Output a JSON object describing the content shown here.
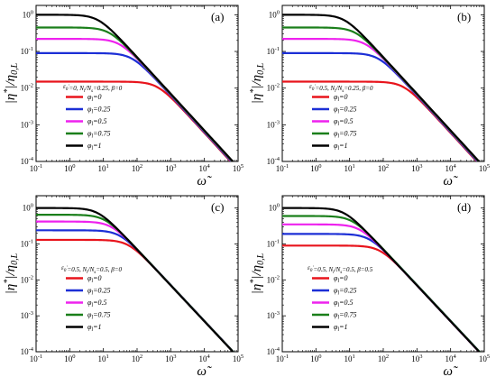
{
  "figure": {
    "xlabel": "ω̃",
    "ylabel": "|η*|/η0,L",
    "x_tick_labels": [
      "10-1",
      "100",
      "101",
      "102",
      "103",
      "104",
      "105"
    ],
    "y_tick_labels": [
      "10-4",
      "10-3",
      "10-2",
      "10-1",
      "100"
    ]
  },
  "chart_data": [
    {
      "type": "line",
      "panel_label": "(a)",
      "title": "",
      "xlabel": "ω̃",
      "ylabel": "|η*|/η0,L",
      "x_scale": "log",
      "y_scale": "log",
      "xlim": [
        0.1,
        100000
      ],
      "ylim": [
        0.0001,
        1.8
      ],
      "conditions": "ε0'=0, Nl/Ns=0.25, β=0",
      "legend_position": "center-left",
      "series": [
        {
          "name": "φl=0",
          "color": "#e8141c",
          "eta0": 0.015,
          "omega_c": 400,
          "slope": 1
        },
        {
          "name": "φl=0.25",
          "color": "#1c2fd6",
          "eta0": 0.09,
          "omega_c": 70,
          "slope": 1
        },
        {
          "name": "φl=0.5",
          "color": "#ee22ee",
          "eta0": 0.22,
          "omega_c": 30,
          "slope": 1
        },
        {
          "name": "φl=0.75",
          "color": "#1a7f1a",
          "eta0": 0.45,
          "omega_c": 15,
          "slope": 1
        },
        {
          "name": "φl=1",
          "color": "#000000",
          "eta0": 1.0,
          "omega_c": 7,
          "slope": 1
        }
      ]
    },
    {
      "type": "line",
      "panel_label": "(b)",
      "title": "",
      "xlabel": "ω̃",
      "ylabel": "|η*|/η0,L",
      "x_scale": "log",
      "y_scale": "log",
      "xlim": [
        0.1,
        100000
      ],
      "ylim": [
        0.0001,
        1.8
      ],
      "conditions": "ε0'=0.5, Nl/Ns=0.25, β=0",
      "legend_position": "center-left",
      "series": [
        {
          "name": "φl=0",
          "color": "#e8141c",
          "eta0": 0.015,
          "omega_c": 400,
          "slope": 1
        },
        {
          "name": "φl=0.25",
          "color": "#1c2fd6",
          "eta0": 0.09,
          "omega_c": 70,
          "slope": 1
        },
        {
          "name": "φl=0.5",
          "color": "#ee22ee",
          "eta0": 0.22,
          "omega_c": 30,
          "slope": 1
        },
        {
          "name": "φl=0.75",
          "color": "#1a7f1a",
          "eta0": 0.45,
          "omega_c": 15,
          "slope": 1
        },
        {
          "name": "φl=1",
          "color": "#000000",
          "eta0": 1.0,
          "omega_c": 7,
          "slope": 1
        }
      ]
    },
    {
      "type": "line",
      "panel_label": "(c)",
      "title": "",
      "xlabel": "ω̃",
      "ylabel": "|η*|/η0,L",
      "x_scale": "log",
      "y_scale": "log",
      "xlim": [
        0.1,
        100000
      ],
      "ylim": [
        0.0001,
        2.2
      ],
      "conditions": "ε0'=0.5, Nl/Ns=0.5, β=0",
      "legend_position": "center-left",
      "series": [
        {
          "name": "φl=0",
          "color": "#e8141c",
          "eta0": 0.13,
          "omega_c": 55,
          "slope": 1
        },
        {
          "name": "φl=0.25",
          "color": "#1c2fd6",
          "eta0": 0.24,
          "omega_c": 30,
          "slope": 1
        },
        {
          "name": "φl=0.5",
          "color": "#ee22ee",
          "eta0": 0.42,
          "omega_c": 17,
          "slope": 1
        },
        {
          "name": "φl=0.75",
          "color": "#1a7f1a",
          "eta0": 0.65,
          "omega_c": 11,
          "slope": 1
        },
        {
          "name": "φl=1",
          "color": "#000000",
          "eta0": 1.0,
          "omega_c": 7,
          "slope": 1
        }
      ]
    },
    {
      "type": "line",
      "panel_label": "(d)",
      "title": "",
      "xlabel": "ω̃",
      "ylabel": "|η*|/η0,L",
      "x_scale": "log",
      "y_scale": "log",
      "xlim": [
        0.1,
        100000
      ],
      "ylim": [
        0.0001,
        2.2
      ],
      "conditions": "ε0'=0.5, Nl/Ns=0.5, β=0.5",
      "legend_position": "center-left",
      "series": [
        {
          "name": "φl=0",
          "color": "#e8141c",
          "eta0": 0.09,
          "omega_c": 80,
          "slope": 1
        },
        {
          "name": "φl=0.25",
          "color": "#1c2fd6",
          "eta0": 0.19,
          "omega_c": 38,
          "slope": 1
        },
        {
          "name": "φl=0.5",
          "color": "#ee22ee",
          "eta0": 0.35,
          "omega_c": 20,
          "slope": 1
        },
        {
          "name": "φl=0.75",
          "color": "#1a7f1a",
          "eta0": 0.6,
          "omega_c": 12,
          "slope": 1
        },
        {
          "name": "φl=1",
          "color": "#000000",
          "eta0": 1.0,
          "omega_c": 7,
          "slope": 1
        }
      ]
    }
  ]
}
